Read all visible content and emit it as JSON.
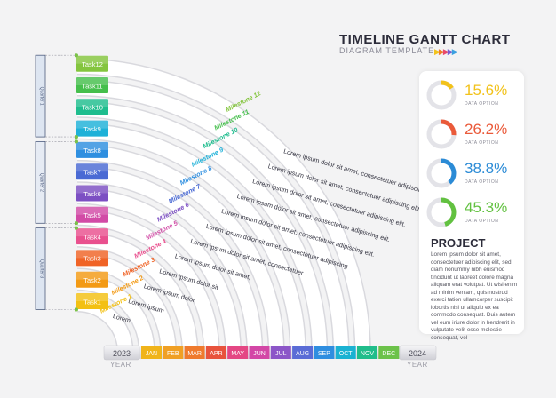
{
  "header": {
    "title": "TIMELINE GANTT CHART",
    "subtitle": "DIAGRAM TEMPLATE",
    "arrow_glyph": "▶▶▶▶▶"
  },
  "colors": {
    "arrows": [
      "#f2c31b",
      "#f07b2a",
      "#e8486b",
      "#7b5bd0",
      "#3ba0e0"
    ],
    "tasks": [
      "#f3c012",
      "#f39a14",
      "#f06326",
      "#e9508e",
      "#d24ba6",
      "#7c4fc3",
      "#4a6ad4",
      "#2f8fe0",
      "#1eb1d8",
      "#1fbd8e",
      "#45bf4c",
      "#84c53e"
    ],
    "months": [
      "#f0b41a",
      "#f0a024",
      "#ef7a2d",
      "#e8533d",
      "#e44784",
      "#d347a6",
      "#8c56c8",
      "#5a6cd6",
      "#2f8ee0",
      "#1bb2d2",
      "#21bd8b",
      "#6cc24a",
      "#94c83a"
    ]
  },
  "tasks": [
    "Task1",
    "Task2",
    "Task3",
    "Task4",
    "Task5",
    "Task6",
    "Task7",
    "Task8",
    "Task9",
    "Task10",
    "Task11",
    "Task12"
  ],
  "milestones": [
    "Milestone 1",
    "Milestone 2",
    "Milestone 3",
    "Milestone 4",
    "Milestone 5",
    "Milestone 6",
    "Milestone 7",
    "Milestone 8",
    "Milestone 9",
    "Milestone 10",
    "Milestone 11",
    "Milestone 12"
  ],
  "milestone_texts": [
    "Lorem",
    "Lorem ipsum",
    "Lorem ipsum dolor",
    "Lorem ipsum dolor sit",
    "Lorem ipsum dolor sit amet,",
    "Lorem ipsum dolor sit amet, consectetuer",
    "Lorem ipsum dolor sit amet, consectetuer adipiscing",
    "Lorem ipsum dolor sit amet, consectetuer adipiscing elit.",
    "Lorem ipsum dolor sit amet, consectetuer adipiscing elit.",
    "Lorem ipsum dolor sit amet, consectetuer adipiscing elit.",
    "Lorem ipsum dolor sit amet, consectetuer adipiscing elit.",
    "Lorem ipsum dolor sit amet, consectetuer adipiscing elit."
  ],
  "quarters": [
    "Quarter 1",
    "Quarter 2",
    "Quarter 3"
  ],
  "timeline": {
    "start_year": "2023",
    "end_year": "2024",
    "year_caption": "YEAR",
    "months": [
      "JAN",
      "FEB",
      "MAR",
      "APR",
      "MAY",
      "JUN",
      "JUL",
      "AUG",
      "SEP",
      "OCT",
      "NOV",
      "DEC"
    ]
  },
  "stats": [
    {
      "value": "15.6%",
      "fraction": 0.156,
      "label": "DATA OPTION",
      "color": "#f2c21a"
    },
    {
      "value": "26.2%",
      "fraction": 0.262,
      "label": "DATA OPTION",
      "color": "#ea5a3a"
    },
    {
      "value": "38.8%",
      "fraction": 0.388,
      "label": "DATA OPTION",
      "color": "#2b8bd6"
    },
    {
      "value": "45.3%",
      "fraction": 0.453,
      "label": "DATA OPTION",
      "color": "#62c140"
    }
  ],
  "project": {
    "title": "PROJECT",
    "body": "Lorem ipsum dolor sit amet, consectetuer adipiscing elit, sed diam nonummy nibh euismod tincidunt ut laoreet dolore magna aliquam erat volutpat. Ut wisi enim ad minim veniam, quis nostrud exerci tation ullamcorper suscipit lobortis nisl ut aliquip ex ea commodo consequat. Duis autem vel eum iriure dolor in hendrerit in vulputate velit esse molestie consequat, vel"
  }
}
